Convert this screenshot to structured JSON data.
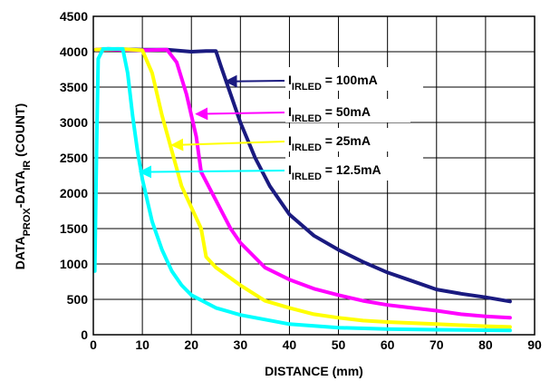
{
  "chart_data": {
    "type": "line",
    "title": "",
    "xlabel": "DISTANCE (mm)",
    "ylabel": {
      "parts": [
        {
          "text": "DATA",
          "sub": false
        },
        {
          "text": "PROX",
          "sub": true
        },
        {
          "text": "-DATA",
          "sub": false
        },
        {
          "text": "IR",
          "sub": true
        },
        {
          "text": " (COUNT)",
          "sub": false
        }
      ]
    },
    "xlim": [
      0,
      90
    ],
    "ylim": [
      0,
      4500
    ],
    "xticks": [
      0,
      10,
      20,
      30,
      40,
      50,
      60,
      70,
      80,
      90
    ],
    "yticks": [
      0,
      500,
      1000,
      1500,
      2000,
      2500,
      3000,
      3500,
      4000,
      4500
    ],
    "grid": true,
    "series": [
      {
        "name": "100mA",
        "color": "#1a1a80",
        "label_prefix": "I",
        "label_sub": "IRLED",
        "label_suffix": " = 100mA",
        "points": [
          [
            0.5,
            4030
          ],
          [
            3,
            4040
          ],
          [
            10,
            4030
          ],
          [
            15,
            4030
          ],
          [
            20,
            4000
          ],
          [
            23,
            4010
          ],
          [
            25,
            4010
          ],
          [
            26,
            3800
          ],
          [
            28,
            3400
          ],
          [
            30,
            3000
          ],
          [
            33,
            2500
          ],
          [
            36,
            2100
          ],
          [
            40,
            1700
          ],
          [
            45,
            1400
          ],
          [
            50,
            1200
          ],
          [
            55,
            1030
          ],
          [
            60,
            880
          ],
          [
            65,
            760
          ],
          [
            70,
            640
          ],
          [
            75,
            580
          ],
          [
            80,
            530
          ],
          [
            85,
            470
          ]
        ]
      },
      {
        "name": "50mA",
        "color": "#ff00ff",
        "label_prefix": "I",
        "label_sub": "IRLED",
        "label_suffix": " = 50mA",
        "points": [
          [
            0.5,
            4030
          ],
          [
            5,
            4030
          ],
          [
            10,
            4020
          ],
          [
            15,
            4030
          ],
          [
            17,
            3850
          ],
          [
            19,
            3400
          ],
          [
            21,
            2800
          ],
          [
            22,
            2300
          ],
          [
            25,
            1900
          ],
          [
            28,
            1500
          ],
          [
            30,
            1300
          ],
          [
            35,
            950
          ],
          [
            40,
            780
          ],
          [
            45,
            650
          ],
          [
            50,
            560
          ],
          [
            55,
            480
          ],
          [
            60,
            420
          ],
          [
            65,
            380
          ],
          [
            70,
            340
          ],
          [
            75,
            290
          ],
          [
            80,
            260
          ],
          [
            85,
            240
          ]
        ]
      },
      {
        "name": "25mA",
        "color": "#ffff00",
        "label_prefix": "I",
        "label_sub": "IRLED",
        "label_suffix": " = 25mA",
        "points": [
          [
            0.5,
            4030
          ],
          [
            5,
            4040
          ],
          [
            10,
            4020
          ],
          [
            12,
            3700
          ],
          [
            14,
            3100
          ],
          [
            16,
            2600
          ],
          [
            18,
            2100
          ],
          [
            20,
            1800
          ],
          [
            22,
            1500
          ],
          [
            23,
            1100
          ],
          [
            25,
            950
          ],
          [
            30,
            700
          ],
          [
            35,
            480
          ],
          [
            40,
            380
          ],
          [
            45,
            290
          ],
          [
            50,
            240
          ],
          [
            55,
            200
          ],
          [
            60,
            180
          ],
          [
            70,
            150
          ],
          [
            80,
            120
          ],
          [
            85,
            110
          ]
        ]
      },
      {
        "name": "12.5mA",
        "color": "#00ffff",
        "label_prefix": "I",
        "label_sub": "IRLED",
        "label_suffix": " = 12.5mA",
        "points": [
          [
            0.3,
            900
          ],
          [
            0.7,
            2800
          ],
          [
            1,
            3900
          ],
          [
            2,
            4040
          ],
          [
            6,
            4040
          ],
          [
            7,
            3700
          ],
          [
            8,
            3100
          ],
          [
            9,
            2600
          ],
          [
            10,
            2200
          ],
          [
            12,
            1600
          ],
          [
            14,
            1200
          ],
          [
            16,
            900
          ],
          [
            18,
            700
          ],
          [
            20,
            560
          ],
          [
            25,
            380
          ],
          [
            30,
            280
          ],
          [
            40,
            150
          ],
          [
            50,
            100
          ],
          [
            60,
            80
          ],
          [
            70,
            70
          ],
          [
            85,
            60
          ]
        ]
      }
    ],
    "annotations": [
      {
        "series": "100mA",
        "arrow_to": [
          27,
          3580
        ]
      },
      {
        "series": "50mA",
        "arrow_to": [
          21,
          3120
        ]
      },
      {
        "series": "25mA",
        "arrow_to": [
          16,
          2680
        ]
      },
      {
        "series": "12.5mA",
        "arrow_to": [
          9.5,
          2300
        ]
      }
    ]
  }
}
